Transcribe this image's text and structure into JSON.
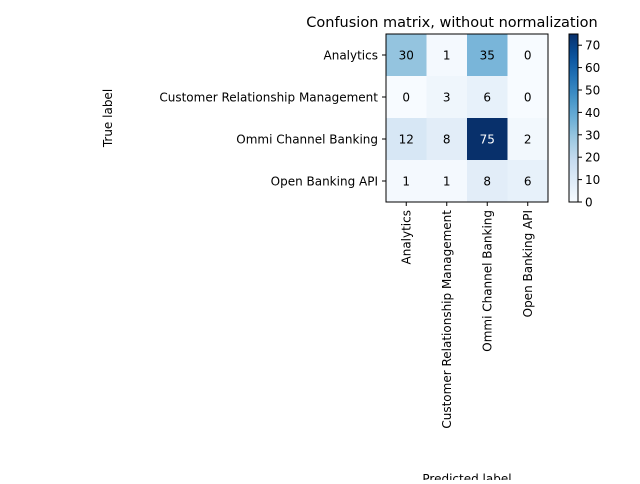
{
  "chart_data": {
    "type": "heatmap",
    "title": "Confusion matrix, without normalization",
    "xlabel": "Predicted label",
    "ylabel": "True label",
    "x_categories": [
      "Analytics",
      "Customer Relationship Management",
      "Ommi Channel Banking",
      "Open Banking API"
    ],
    "y_categories": [
      "Analytics",
      "Customer Relationship Management",
      "Ommi Channel Banking",
      "Open Banking API"
    ],
    "values": [
      [
        30,
        1,
        35,
        0
      ],
      [
        0,
        3,
        6,
        0
      ],
      [
        12,
        8,
        75,
        2
      ],
      [
        1,
        1,
        8,
        6
      ]
    ],
    "colormap": "Blues",
    "colorbar": {
      "min": 0,
      "max": 75,
      "ticks": [
        0,
        10,
        20,
        30,
        40,
        50,
        60,
        70
      ]
    },
    "grid": false
  }
}
